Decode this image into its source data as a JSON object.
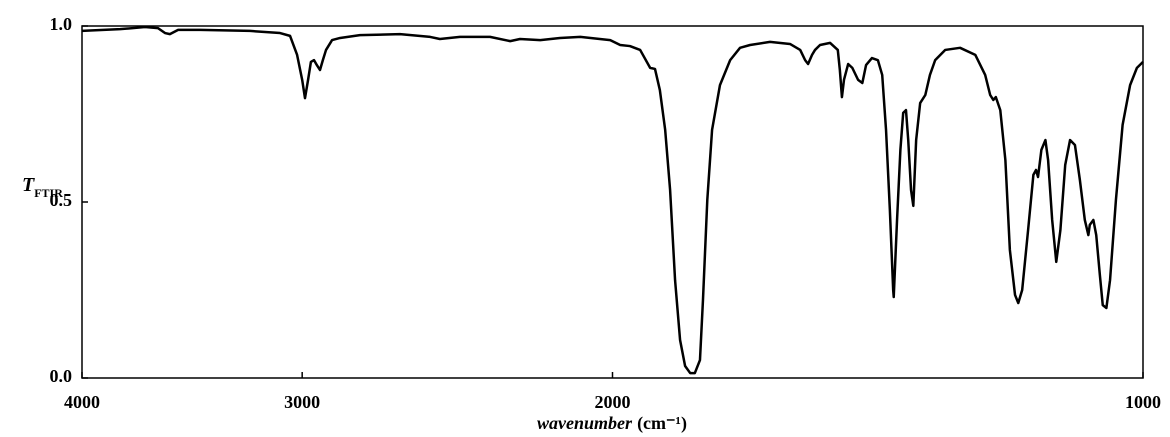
{
  "chart_data": {
    "type": "line",
    "ylabel": "T",
    "ylabel_subscript": "FTIR",
    "xlabel": "wavenumber",
    "xlabel_unit": "(cm⁻¹)",
    "log_x": true,
    "xlim": [
      4000,
      1000
    ],
    "xticks": [
      4000,
      3000,
      2000,
      1000
    ],
    "ylim": [
      0,
      1
    ],
    "yticks": [
      {
        "value": 0,
        "label": "0.0"
      },
      0.5,
      {
        "value": 1,
        "label": "1.0"
      }
    ],
    "grid": false,
    "color": "#000000",
    "x": [
      4000,
      3806,
      3684,
      3622,
      3589,
      3566,
      3528,
      3428,
      3212,
      3088,
      3048,
      3020,
      3000,
      2989,
      2977,
      2966,
      2954,
      2943,
      2931,
      2920,
      2908,
      2885,
      2855,
      2782,
      2640,
      2538,
      2506,
      2441,
      2347,
      2286,
      2257,
      2198,
      2142,
      2086,
      2006,
      1980,
      1955,
      1929,
      1904,
      1892,
      1880,
      1867,
      1855,
      1843,
      1831,
      1819,
      1807,
      1796,
      1784,
      1777,
      1767,
      1756,
      1738,
      1715,
      1693,
      1671,
      1628,
      1586,
      1565,
      1555,
      1549,
      1541,
      1535,
      1525,
      1505,
      1490,
      1486,
      1482,
      1478,
      1470,
      1462,
      1451,
      1443,
      1436,
      1425,
      1414,
      1406,
      1399,
      1392,
      1386,
      1385,
      1379,
      1373,
      1368,
      1363,
      1359,
      1354,
      1350,
      1345,
      1338,
      1329,
      1321,
      1312,
      1295,
      1270,
      1245,
      1229,
      1221,
      1216,
      1212,
      1205,
      1197,
      1190,
      1182,
      1177,
      1171,
      1162,
      1154,
      1150,
      1147,
      1142,
      1136,
      1132,
      1126,
      1120,
      1114,
      1107,
      1100,
      1093,
      1086,
      1079,
      1074,
      1072,
      1067,
      1063,
      1058,
      1054,
      1049,
      1044,
      1036,
      1027,
      1017,
      1008,
      1000
    ],
    "values": [
      0.986,
      0.991,
      0.997,
      0.994,
      0.98,
      0.977,
      0.989,
      0.989,
      0.986,
      0.98,
      0.972,
      0.918,
      0.847,
      0.795,
      0.847,
      0.898,
      0.903,
      0.889,
      0.875,
      0.903,
      0.932,
      0.96,
      0.966,
      0.974,
      0.977,
      0.969,
      0.963,
      0.969,
      0.969,
      0.957,
      0.963,
      0.96,
      0.966,
      0.969,
      0.96,
      0.946,
      0.943,
      0.932,
      0.881,
      0.878,
      0.818,
      0.705,
      0.534,
      0.278,
      0.108,
      0.034,
      0.014,
      0.014,
      0.051,
      0.222,
      0.506,
      0.705,
      0.832,
      0.903,
      0.938,
      0.946,
      0.955,
      0.949,
      0.932,
      0.903,
      0.892,
      0.918,
      0.932,
      0.946,
      0.952,
      0.932,
      0.875,
      0.798,
      0.847,
      0.892,
      0.881,
      0.847,
      0.838,
      0.889,
      0.909,
      0.903,
      0.861,
      0.705,
      0.477,
      0.25,
      0.23,
      0.449,
      0.648,
      0.753,
      0.761,
      0.676,
      0.534,
      0.489,
      0.676,
      0.781,
      0.804,
      0.861,
      0.903,
      0.932,
      0.938,
      0.918,
      0.861,
      0.804,
      0.79,
      0.798,
      0.761,
      0.619,
      0.364,
      0.236,
      0.213,
      0.25,
      0.42,
      0.577,
      0.591,
      0.571,
      0.648,
      0.676,
      0.619,
      0.449,
      0.33,
      0.42,
      0.605,
      0.676,
      0.662,
      0.563,
      0.449,
      0.406,
      0.435,
      0.449,
      0.406,
      0.293,
      0.207,
      0.199,
      0.278,
      0.506,
      0.719,
      0.832,
      0.881,
      0.898
    ]
  }
}
